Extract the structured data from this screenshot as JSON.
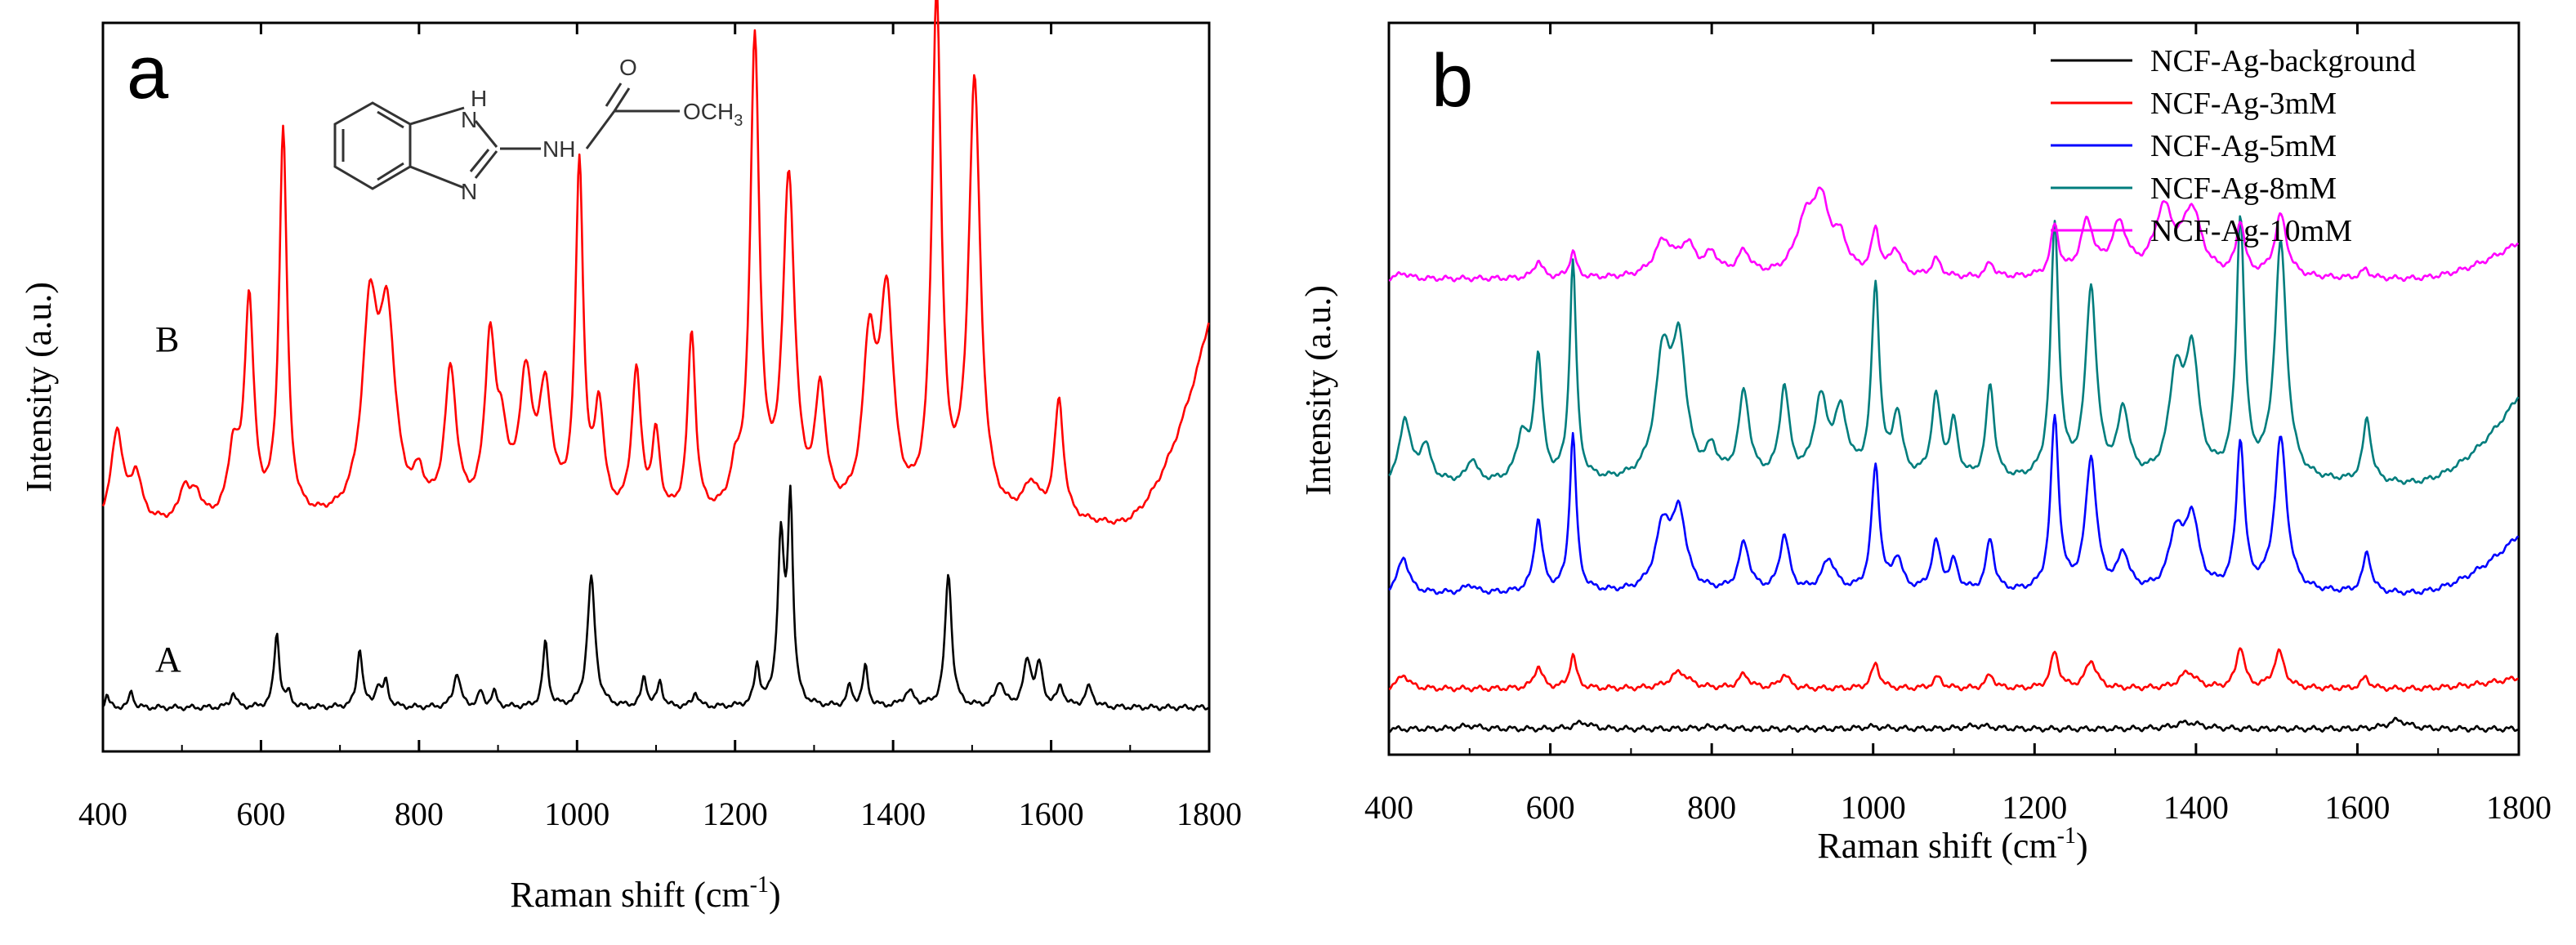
{
  "chart_data": [
    {
      "type": "line",
      "panel_label": "a",
      "xlabel": "Raman shift (cm",
      "xlabel_superscript": "-1",
      "xlabel_close": ")",
      "ylabel": "Intensity (a.u.)",
      "xlim": [
        400,
        1800
      ],
      "xticks": [
        "400",
        "600",
        "800",
        "1000",
        "1200",
        "1400",
        "1600",
        "1800"
      ],
      "ylim": [
        0,
        100
      ],
      "grid": false,
      "y_ticklabels": false,
      "annotations": {
        "structure": {
          "atoms": [
            "H",
            "N",
            "N",
            "NH",
            "O",
            "OCH",
            "3"
          ]
        }
      },
      "series": [
        {
          "name": "A",
          "label": "A",
          "color": "#000000",
          "baseline": 6,
          "scale": 0.68,
          "peaks": [
            [
              405,
              2.5,
              3
            ],
            [
              436,
              3.5,
              3
            ],
            [
              565,
              3,
              4
            ],
            [
              620,
              15,
              4
            ],
            [
              635,
              2.5,
              4
            ],
            [
              725,
              12,
              4
            ],
            [
              748,
              4,
              4
            ],
            [
              758,
              5,
              4
            ],
            [
              848,
              7,
              5
            ],
            [
              878,
              3,
              4
            ],
            [
              895,
              3,
              4
            ],
            [
              960,
              13,
              4
            ],
            [
              1018,
              26,
              6
            ],
            [
              1085,
              6,
              4
            ],
            [
              1105,
              5,
              4
            ],
            [
              1150,
              3,
              4
            ],
            [
              1228,
              8,
              4
            ],
            [
              1258,
              33,
              5
            ],
            [
              1270,
              40,
              4
            ],
            [
              1345,
              4,
              4
            ],
            [
              1365,
              8,
              4
            ],
            [
              1420,
              3,
              8
            ],
            [
              1470,
              27,
              5
            ],
            [
              1535,
              5,
              6
            ],
            [
              1570,
              9,
              6
            ],
            [
              1585,
              8,
              5
            ],
            [
              1612,
              4,
              5
            ],
            [
              1648,
              4,
              6
            ]
          ]
        },
        {
          "name": "B",
          "label": "B",
          "color": "#ff0000",
          "baseline": 31,
          "scale": 0.9,
          "peaks": [
            [
              418,
              14,
              9
            ],
            [
              442,
              7,
              8
            ],
            [
              503,
              5,
              7
            ],
            [
              518,
              4,
              8
            ],
            [
              565,
              10,
              8
            ],
            [
              585,
              33,
              7
            ],
            [
              628,
              59,
              6
            ],
            [
              738,
              30,
              12
            ],
            [
              760,
              28,
              12
            ],
            [
              800,
              5,
              8
            ],
            [
              840,
              22,
              9
            ],
            [
              890,
              26,
              8
            ],
            [
              905,
              10,
              8
            ],
            [
              935,
              20,
              10
            ],
            [
              960,
              18,
              10
            ],
            [
              1003,
              53,
              6
            ],
            [
              1028,
              16,
              7
            ],
            [
              1075,
              22,
              7
            ],
            [
              1100,
              12,
              6
            ],
            [
              1145,
              28,
              6
            ],
            [
              1200,
              5,
              8
            ],
            [
              1225,
              72,
              7
            ],
            [
              1268,
              51,
              9
            ],
            [
              1308,
              18,
              8
            ],
            [
              1370,
              25,
              10
            ],
            [
              1392,
              32,
              10
            ],
            [
              1455,
              79,
              7
            ],
            [
              1503,
              66,
              9
            ],
            [
              1575,
              5,
              12
            ],
            [
              1610,
              18,
              7
            ]
          ],
          "tail": [
            [
              1680,
              0
            ],
            [
              1800,
              28
            ]
          ]
        }
      ]
    },
    {
      "type": "line",
      "panel_label": "b",
      "xlabel": "Raman shift (cm",
      "xlabel_superscript": "-1",
      "xlabel_close": ")",
      "ylabel": "Intensity (a.u.)",
      "xlim": [
        400,
        1800
      ],
      "xticks": [
        "400",
        "600",
        "800",
        "1000",
        "1200",
        "1400",
        "1600",
        "1800"
      ],
      "ylim": [
        0,
        100
      ],
      "grid": false,
      "y_ticklabels": false,
      "legend_position": "top-right",
      "series": [
        {
          "name": "NCF-Ag-background",
          "color": "#000000",
          "baseline": 3.5,
          "scale": 0.3,
          "peaks": [
            [
              500,
              1.5,
              15
            ],
            [
              640,
              3,
              12
            ],
            [
              800,
              1,
              20
            ],
            [
              1000,
              1,
              20
            ],
            [
              1130,
              1.5,
              20
            ],
            [
              1390,
              3,
              20
            ],
            [
              1650,
              4,
              15
            ]
          ]
        },
        {
          "name": "NCF-Ag-3mM",
          "color": "#ff0000",
          "baseline": 9,
          "scale": 0.38,
          "peaks": [
            [
              418,
              5,
              8
            ],
            [
              585,
              8,
              6
            ],
            [
              628,
              12,
              5
            ],
            [
              760,
              6,
              14
            ],
            [
              840,
              5,
              8
            ],
            [
              890,
              5,
              7
            ],
            [
              1003,
              9,
              6
            ],
            [
              1080,
              4,
              7
            ],
            [
              1145,
              5,
              6
            ],
            [
              1225,
              13,
              6
            ],
            [
              1270,
              10,
              8
            ],
            [
              1390,
              6,
              12
            ],
            [
              1455,
              15,
              6
            ],
            [
              1503,
              13,
              8
            ],
            [
              1610,
              4,
              6
            ]
          ],
          "tail": [
            [
              1650,
              0
            ],
            [
              1800,
              1.5
            ]
          ]
        },
        {
          "name": "NCF-Ag-5mM",
          "color": "#0000ff",
          "baseline": 22,
          "scale": 0.55,
          "peaks": [
            [
              418,
              9,
              8
            ],
            [
              500,
              2,
              8
            ],
            [
              585,
              18,
              6
            ],
            [
              628,
              39,
              5
            ],
            [
              740,
              16,
              12
            ],
            [
              760,
              18,
              10
            ],
            [
              840,
              12,
              8
            ],
            [
              890,
              14,
              7
            ],
            [
              945,
              8,
              10
            ],
            [
              1003,
              31,
              6
            ],
            [
              1030,
              8,
              7
            ],
            [
              1078,
              12,
              7
            ],
            [
              1100,
              7,
              6
            ],
            [
              1145,
              13,
              6
            ],
            [
              1225,
              43,
              6
            ],
            [
              1270,
              33,
              8
            ],
            [
              1310,
              9,
              8
            ],
            [
              1375,
              14,
              10
            ],
            [
              1395,
              18,
              10
            ],
            [
              1455,
              37,
              6
            ],
            [
              1505,
              38,
              9
            ],
            [
              1612,
              10,
              6
            ]
          ],
          "tail": [
            [
              1660,
              0
            ],
            [
              1800,
              8
            ]
          ]
        },
        {
          "name": "NCF-Ag-8mM",
          "color": "#007d7d",
          "baseline": 37,
          "scale": 0.62,
          "peaks": [
            [
              420,
              14,
              8
            ],
            [
              445,
              8,
              8
            ],
            [
              503,
              5,
              7
            ],
            [
              565,
              10,
              8
            ],
            [
              585,
              27,
              6
            ],
            [
              628,
              48,
              5
            ],
            [
              740,
              27,
              12
            ],
            [
              760,
              27,
              10
            ],
            [
              800,
              6,
              8
            ],
            [
              840,
              19,
              8
            ],
            [
              890,
              20,
              7
            ],
            [
              935,
              17,
              10
            ],
            [
              960,
              14,
              10
            ],
            [
              1003,
              42,
              6
            ],
            [
              1030,
              14,
              7
            ],
            [
              1078,
              18,
              7
            ],
            [
              1100,
              12,
              6
            ],
            [
              1145,
              21,
              6
            ],
            [
              1225,
              56,
              6
            ],
            [
              1270,
              42,
              8
            ],
            [
              1310,
              15,
              8
            ],
            [
              1375,
              22,
              10
            ],
            [
              1395,
              27,
              10
            ],
            [
              1455,
              57,
              6
            ],
            [
              1505,
              52,
              9
            ],
            [
              1612,
              14,
              6
            ]
          ],
          "tail": [
            [
              1660,
              0
            ],
            [
              1800,
              12
            ]
          ]
        },
        {
          "name": "NCF-Ag-10mM",
          "color": "#ff00ff",
          "baseline": 65,
          "scale": 0.4,
          "peaks": [
            [
              418,
              2,
              8
            ],
            [
              585,
              6,
              6
            ],
            [
              628,
              9,
              5
            ],
            [
              740,
              12,
              14
            ],
            [
              770,
              10,
              12
            ],
            [
              800,
              7,
              10
            ],
            [
              840,
              8,
              10
            ],
            [
              915,
              15,
              14
            ],
            [
              935,
              24,
              14
            ],
            [
              960,
              10,
              10
            ],
            [
              1003,
              15,
              6
            ],
            [
              1028,
              9,
              8
            ],
            [
              1078,
              6,
              7
            ],
            [
              1145,
              5,
              6
            ],
            [
              1225,
              17,
              6
            ],
            [
              1265,
              18,
              10
            ],
            [
              1305,
              17,
              12
            ],
            [
              1360,
              22,
              14
            ],
            [
              1395,
              22,
              14
            ],
            [
              1455,
              18,
              6
            ],
            [
              1505,
              21,
              9
            ],
            [
              1610,
              3,
              6
            ]
          ],
          "tail": [
            [
              1660,
              0
            ],
            [
              1800,
              5
            ]
          ]
        }
      ]
    }
  ]
}
